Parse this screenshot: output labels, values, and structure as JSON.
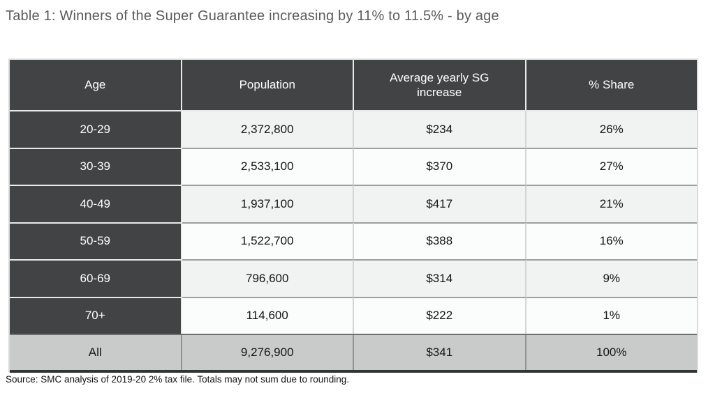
{
  "title": "Table 1: Winners of the Super Guarantee increasing by 11% to 11.5% - by age",
  "table": {
    "columns": [
      "Age",
      "Population",
      "Average yearly SG increase",
      "% Share"
    ],
    "rows": [
      {
        "age": "20-29",
        "population": "2,372,800",
        "sg_increase": "$234",
        "share": "26%"
      },
      {
        "age": "30-39",
        "population": "2,533,100",
        "sg_increase": "$370",
        "share": "27%"
      },
      {
        "age": "40-49",
        "population": "1,937,100",
        "sg_increase": "$417",
        "share": "21%"
      },
      {
        "age": "50-59",
        "population": "1,522,700",
        "sg_increase": "$388",
        "share": "16%"
      },
      {
        "age": "60-69",
        "population": "796,600",
        "sg_increase": "$314",
        "share": "9%"
      },
      {
        "age": "70+",
        "population": "114,600",
        "sg_increase": "$222",
        "share": "1%"
      }
    ],
    "total_row": {
      "age": "All",
      "population": "9,276,900",
      "sg_increase": "$341",
      "share": "100%"
    }
  },
  "source_note": "Source: SMC analysis of 2019-20 2% tax file. Totals may not sum due to rounding.",
  "chart_data": {
    "type": "table",
    "title": "Table 1: Winners of the Super Guarantee increasing by 11% to 11.5% - by age",
    "columns": [
      "Age",
      "Population",
      "Average yearly SG increase",
      "% Share"
    ],
    "rows": [
      [
        "20-29",
        2372800,
        234,
        "26%"
      ],
      [
        "30-39",
        2533100,
        370,
        "27%"
      ],
      [
        "40-49",
        1937100,
        417,
        "21%"
      ],
      [
        "50-59",
        1522700,
        388,
        "16%"
      ],
      [
        "60-69",
        796600,
        314,
        "9%"
      ],
      [
        "70+",
        114600,
        222,
        "1%"
      ],
      [
        "All",
        9276900,
        341,
        "100%"
      ]
    ]
  },
  "colors": {
    "header_bg": "#414345",
    "header_text": "#ffffff",
    "row_alt_bg": "#f1f2f2",
    "row_bg": "#fbfcfc",
    "total_row_bg": "#c9cbca",
    "title_text": "#595b5c",
    "bottom_border": "#323536"
  }
}
